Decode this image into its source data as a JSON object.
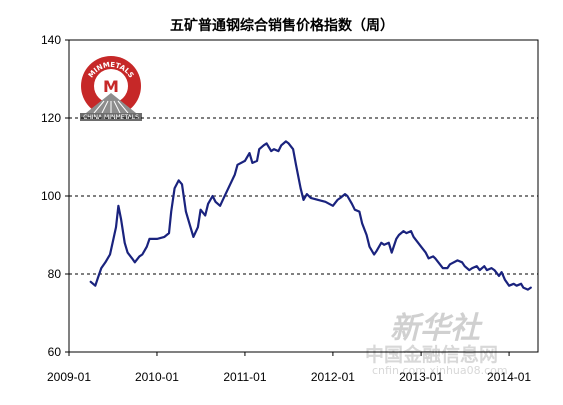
{
  "chart_data": {
    "type": "line",
    "title": "五矿普通钢综合销售价格指数（周）",
    "xlabel": "",
    "ylabel": "",
    "ylim": [
      60,
      140
    ],
    "yticks": [
      60,
      80,
      100,
      120,
      140
    ],
    "xlim": [
      "2009-01",
      "2014-05"
    ],
    "xticks": [
      "2009-01",
      "2010-01",
      "2011-01",
      "2012-01",
      "2013-01",
      "2014-01"
    ],
    "grid": "horizontal-dashed",
    "line_color": "#1a237e",
    "series": [
      {
        "name": "",
        "points": [
          [
            "2009-04",
            78.0
          ],
          [
            "2009-04-20",
            77.0
          ],
          [
            "2009-05",
            79.0
          ],
          [
            "2009-05-15",
            81.5
          ],
          [
            "2009-06",
            83.0
          ],
          [
            "2009-06-20",
            85.0
          ],
          [
            "2009-07",
            88.0
          ],
          [
            "2009-07-15",
            92.0
          ],
          [
            "2009-07-25",
            97.5
          ],
          [
            "2009-08-05",
            94.0
          ],
          [
            "2009-08-20",
            88.0
          ],
          [
            "2009-09",
            85.5
          ],
          [
            "2009-09-20",
            84.0
          ],
          [
            "2009-10",
            83.0
          ],
          [
            "2009-10-20",
            84.5
          ],
          [
            "2009-11",
            85.0
          ],
          [
            "2009-11-20",
            87.0
          ],
          [
            "2009-12",
            89.0
          ],
          [
            "2010-01",
            89.0
          ],
          [
            "2010-02",
            89.5
          ],
          [
            "2010-02-20",
            90.5
          ],
          [
            "2010-03",
            96.0
          ],
          [
            "2010-03-15",
            102.0
          ],
          [
            "2010-04",
            104.0
          ],
          [
            "2010-04-15",
            103.0
          ],
          [
            "2010-05",
            96.0
          ],
          [
            "2010-05-20",
            92.0
          ],
          [
            "2010-06",
            89.5
          ],
          [
            "2010-06-20",
            92.0
          ],
          [
            "2010-07",
            96.5
          ],
          [
            "2010-07-20",
            95.0
          ],
          [
            "2010-08",
            98.0
          ],
          [
            "2010-08-20",
            100.0
          ],
          [
            "2010-09",
            98.5
          ],
          [
            "2010-09-20",
            97.5
          ],
          [
            "2010-10",
            99.0
          ],
          [
            "2010-11",
            103.0
          ],
          [
            "2010-11-20",
            105.5
          ],
          [
            "2010-12",
            108.0
          ],
          [
            "2011-01",
            109.0
          ],
          [
            "2011-01-20",
            111.0
          ],
          [
            "2011-02",
            108.5
          ],
          [
            "2011-02-20",
            109.0
          ],
          [
            "2011-03",
            112.0
          ],
          [
            "2011-03-20",
            113.0
          ],
          [
            "2011-04",
            113.5
          ],
          [
            "2011-04-20",
            111.5
          ],
          [
            "2011-05",
            112.0
          ],
          [
            "2011-05-20",
            111.5
          ],
          [
            "2011-06",
            113.0
          ],
          [
            "2011-06-20",
            114.0
          ],
          [
            "2011-07",
            113.5
          ],
          [
            "2011-07-20",
            112.0
          ],
          [
            "2011-08",
            108.0
          ],
          [
            "2011-08-20",
            102.0
          ],
          [
            "2011-09",
            99.0
          ],
          [
            "2011-09-15",
            100.5
          ],
          [
            "2011-10",
            99.5
          ],
          [
            "2011-11",
            99.0
          ],
          [
            "2011-12",
            98.5
          ],
          [
            "2012-01",
            97.5
          ],
          [
            "2012-01-20",
            99.0
          ],
          [
            "2012-02",
            99.5
          ],
          [
            "2012-02-20",
            100.5
          ],
          [
            "2012-03",
            100.0
          ],
          [
            "2012-03-20",
            98.0
          ],
          [
            "2012-04",
            96.5
          ],
          [
            "2012-04-20",
            96.0
          ],
          [
            "2012-05",
            93.0
          ],
          [
            "2012-05-20",
            90.0
          ],
          [
            "2012-06",
            87.0
          ],
          [
            "2012-06-20",
            85.0
          ],
          [
            "2012-07",
            86.0
          ],
          [
            "2012-07-20",
            88.0
          ],
          [
            "2012-08",
            87.5
          ],
          [
            "2012-08-20",
            88.0
          ],
          [
            "2012-09",
            85.5
          ],
          [
            "2012-09-20",
            89.0
          ],
          [
            "2012-10",
            90.0
          ],
          [
            "2012-10-20",
            91.0
          ],
          [
            "2012-11",
            90.5
          ],
          [
            "2012-11-20",
            91.0
          ],
          [
            "2012-12",
            89.5
          ],
          [
            "2013-01",
            87.0
          ],
          [
            "2013-01-20",
            85.5
          ],
          [
            "2013-02",
            84.0
          ],
          [
            "2013-02-20",
            84.5
          ],
          [
            "2013-03",
            84.0
          ],
          [
            "2013-03-20",
            82.5
          ],
          [
            "2013-04",
            81.5
          ],
          [
            "2013-04-20",
            81.5
          ],
          [
            "2013-05",
            82.5
          ],
          [
            "2013-06",
            83.5
          ],
          [
            "2013-06-20",
            83.0
          ],
          [
            "2013-07",
            82.0
          ],
          [
            "2013-07-20",
            81.0
          ],
          [
            "2013-08",
            81.5
          ],
          [
            "2013-08-20",
            82.0
          ],
          [
            "2013-09",
            81.0
          ],
          [
            "2013-09-20",
            82.0
          ],
          [
            "2013-10",
            81.0
          ],
          [
            "2013-10-20",
            81.5
          ],
          [
            "2013-11",
            81.0
          ],
          [
            "2013-11-20",
            79.5
          ],
          [
            "2013-12",
            80.5
          ],
          [
            "2013-12-15",
            78.5
          ],
          [
            "2014-01",
            77.0
          ],
          [
            "2014-01-20",
            77.5
          ],
          [
            "2014-02",
            77.0
          ],
          [
            "2014-02-20",
            77.5
          ],
          [
            "2014-03",
            76.5
          ],
          [
            "2014-03-20",
            76.0
          ],
          [
            "2014-04",
            76.5
          ]
        ]
      }
    ]
  },
  "logo": {
    "ring_text": "MINMETALS",
    "emblem_letter": "M",
    "band_text": "CHINA MINMETALS"
  },
  "watermark": {
    "line1": "新华社",
    "line2": "中国金融信息网",
    "line3": "cnfin.com  xinhua08.com"
  }
}
